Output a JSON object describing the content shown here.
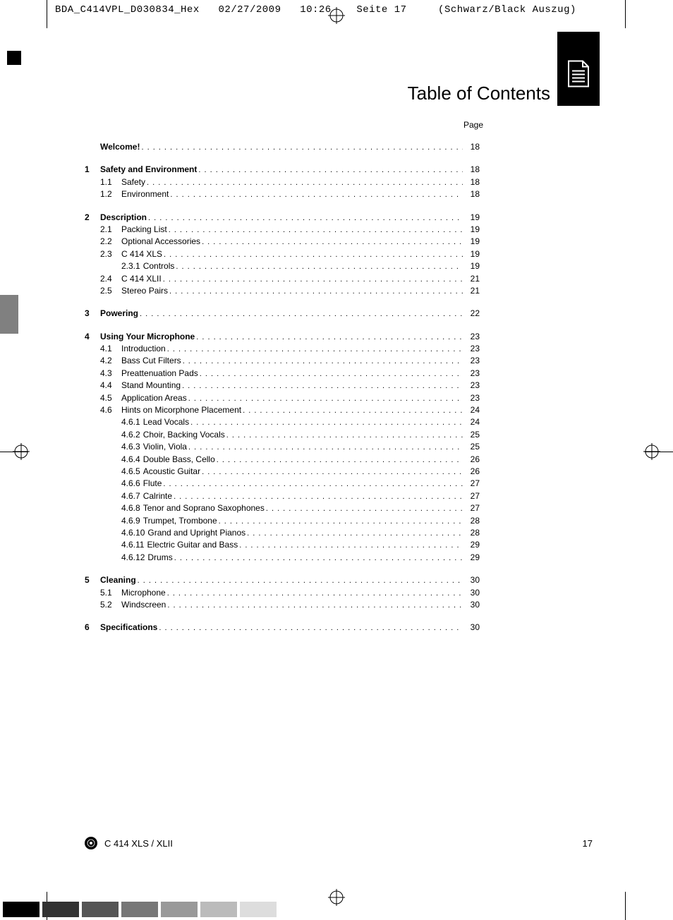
{
  "header": {
    "filename": "BDA_C414VPL_D030834_Hex",
    "date": "02/27/2009",
    "time": "10:26",
    "page_marker": "Seite 17",
    "color_sep": "(Schwarz/Black Auszug)"
  },
  "section_title": "Table of Contents",
  "page_label": "Page",
  "toc": [
    {
      "level": 1,
      "num": "",
      "title": "Welcome!",
      "page": "18",
      "bold": true,
      "gap_after": true
    },
    {
      "level": 1,
      "num": "1",
      "title": "Safety and Environment",
      "page": "18",
      "bold": true
    },
    {
      "level": 2,
      "num": "1.1",
      "title": "Safety",
      "page": "18"
    },
    {
      "level": 2,
      "num": "1.2",
      "title": "Environment",
      "page": "18",
      "gap_after": true
    },
    {
      "level": 1,
      "num": "2",
      "title": "Description",
      "page": "19",
      "bold": true
    },
    {
      "level": 2,
      "num": "2.1",
      "title": "Packing List",
      "page": "19"
    },
    {
      "level": 2,
      "num": "2.2",
      "title": "Optional Accessories",
      "page": "19"
    },
    {
      "level": 2,
      "num": "2.3",
      "title": "C 414 XLS",
      "page": "19"
    },
    {
      "level": 3,
      "num": "2.3.1",
      "title": "Controls",
      "page": "19"
    },
    {
      "level": 2,
      "num": "2.4",
      "title": "C 414 XLII",
      "page": "21"
    },
    {
      "level": 2,
      "num": "2.5",
      "title": "Stereo Pairs",
      "page": "21",
      "gap_after": true
    },
    {
      "level": 1,
      "num": "3",
      "title": "Powering",
      "page": "22",
      "bold": true,
      "gap_after": true
    },
    {
      "level": 1,
      "num": "4",
      "title": "Using Your Microphone",
      "page": "23",
      "bold": true
    },
    {
      "level": 2,
      "num": "4.1",
      "title": "Introduction",
      "page": "23"
    },
    {
      "level": 2,
      "num": "4.2",
      "title": "Bass Cut Filters",
      "page": "23"
    },
    {
      "level": 2,
      "num": "4.3",
      "title": "Preattenuation Pads",
      "page": "23"
    },
    {
      "level": 2,
      "num": "4.4",
      "title": "Stand Mounting",
      "page": "23"
    },
    {
      "level": 2,
      "num": "4.5",
      "title": "Application Areas",
      "page": "23"
    },
    {
      "level": 2,
      "num": "4.6",
      "title": "Hints on Micorphone Placement",
      "page": "24"
    },
    {
      "level": 3,
      "num": "4.6.1",
      "title": "Lead Vocals",
      "page": "24"
    },
    {
      "level": 3,
      "num": "4.6.2",
      "title": "Choir, Backing Vocals",
      "page": "25"
    },
    {
      "level": 3,
      "num": "4.6.3",
      "title": "Violin, Viola",
      "page": "25"
    },
    {
      "level": 3,
      "num": "4.6.4",
      "title": "Double Bass, Cello",
      "page": "26"
    },
    {
      "level": 3,
      "num": "4.6.5",
      "title": "Acoustic Guitar",
      "page": "26"
    },
    {
      "level": 3,
      "num": "4.6.6",
      "title": "Flute",
      "page": "27"
    },
    {
      "level": 3,
      "num": "4.6.7",
      "title": "Calrinte",
      "page": "27"
    },
    {
      "level": 3,
      "num": "4.6.8",
      "title": "Tenor and Soprano Saxophones",
      "page": "27"
    },
    {
      "level": 3,
      "num": "4.6.9",
      "title": "Trumpet, Trombone",
      "page": "28"
    },
    {
      "level": 3,
      "num": "4.6.10",
      "title": "Grand and Upright Pianos",
      "page": "28"
    },
    {
      "level": 3,
      "num": "4.6.11",
      "title": "Electric Guitar and Bass",
      "page": "29"
    },
    {
      "level": 3,
      "num": "4.6.12",
      "title": "Drums",
      "page": "29",
      "gap_after": true
    },
    {
      "level": 1,
      "num": "5",
      "title": "Cleaning",
      "page": "30",
      "bold": true
    },
    {
      "level": 2,
      "num": "5.1",
      "title": "Microphone",
      "page": "30"
    },
    {
      "level": 2,
      "num": "5.2",
      "title": "Windscreen",
      "page": "30",
      "gap_after": true
    },
    {
      "level": 1,
      "num": "6",
      "title": "Specifications",
      "page": "30",
      "bold": true
    }
  ],
  "footer": {
    "model": "C 414 XLS / XLII",
    "page_number": "17"
  },
  "colorbar": [
    "#000000",
    "#333333",
    "#555555",
    "#777777",
    "#999999",
    "#bbbbbb",
    "#dddddd"
  ]
}
